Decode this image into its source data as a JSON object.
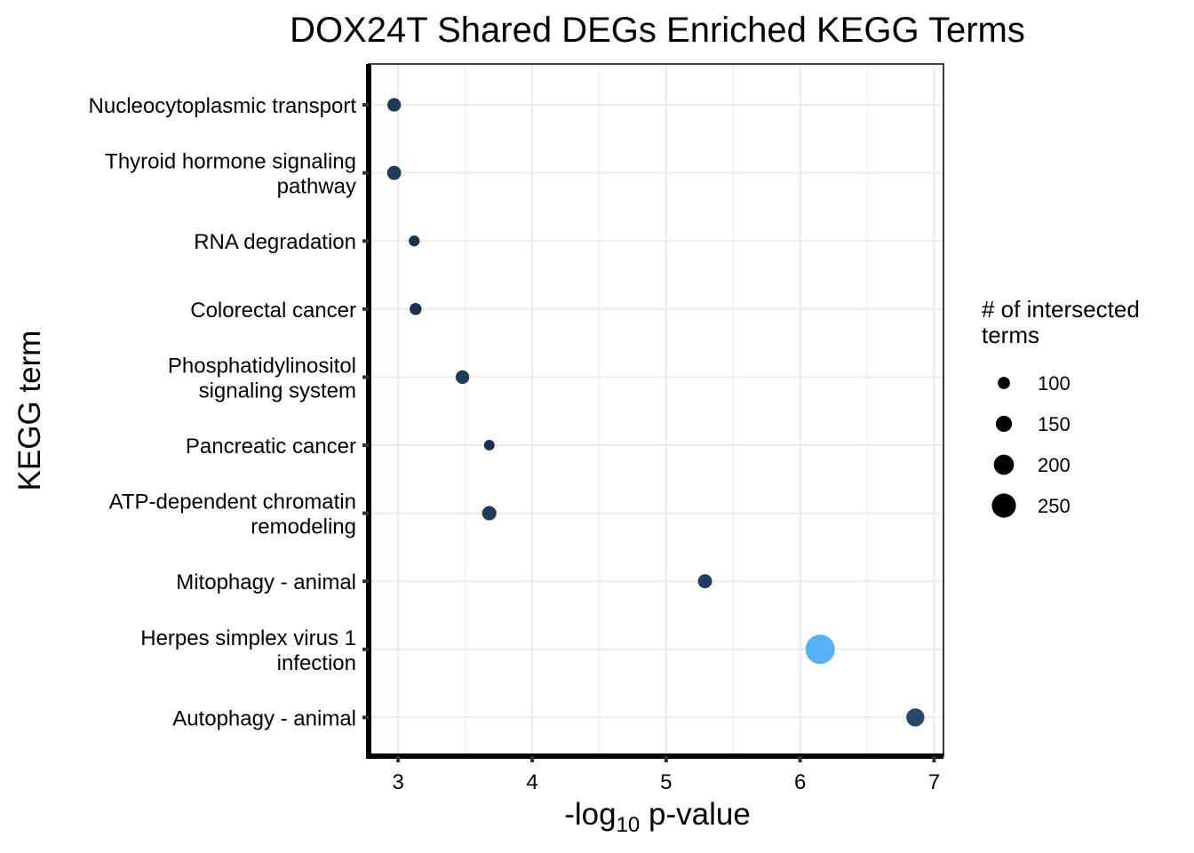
{
  "chart_data": {
    "type": "scatter",
    "title": "DOX24T Shared DEGs Enriched KEGG Terms",
    "xlabel": {
      "prefix": "-log",
      "subscript": "10",
      "suffix": " p-value"
    },
    "ylabel": "KEGG term",
    "xlim": [
      2.78,
      7.07
    ],
    "xticks": [
      3,
      4,
      5,
      6,
      7
    ],
    "grid": true,
    "categories": [
      [
        "Nucleocytoplasmic transport"
      ],
      [
        "Thyroid hormone signaling",
        "pathway"
      ],
      [
        "RNA degradation"
      ],
      [
        "Colorectal cancer"
      ],
      [
        "Phosphatidylinositol",
        "signaling system"
      ],
      [
        "Pancreatic cancer"
      ],
      [
        "ATP-dependent chromatin",
        "remodeling"
      ],
      [
        "Mitophagy - animal"
      ],
      [
        "Herpes simplex virus 1",
        "infection"
      ],
      [
        "Autophagy - animal"
      ]
    ],
    "points": [
      {
        "x": 2.97,
        "size": 100,
        "color": "#1d3a56"
      },
      {
        "x": 2.97,
        "size": 105,
        "color": "#1f3d5a"
      },
      {
        "x": 3.12,
        "size": 70,
        "color": "#1a334c"
      },
      {
        "x": 3.13,
        "size": 82,
        "color": "#1a334c"
      },
      {
        "x": 3.48,
        "size": 100,
        "color": "#1d3a56"
      },
      {
        "x": 3.68,
        "size": 66,
        "color": "#1a334c"
      },
      {
        "x": 3.68,
        "size": 108,
        "color": "#1f3d5a"
      },
      {
        "x": 5.29,
        "size": 105,
        "color": "#1f3d5a"
      },
      {
        "x": 6.15,
        "size": 275,
        "color": "#56b1f7"
      },
      {
        "x": 6.86,
        "size": 150,
        "color": "#27486b"
      }
    ],
    "size_legend": {
      "title": [
        "# of intersected",
        " terms"
      ],
      "entries": [
        {
          "label": "100",
          "size": 100
        },
        {
          "label": "150",
          "size": 150
        },
        {
          "label": "200",
          "size": 200
        },
        {
          "label": "250",
          "size": 250
        }
      ]
    },
    "colors": {
      "grid": "#ebebeb",
      "axis": "#000000",
      "tick": "#333333"
    }
  }
}
